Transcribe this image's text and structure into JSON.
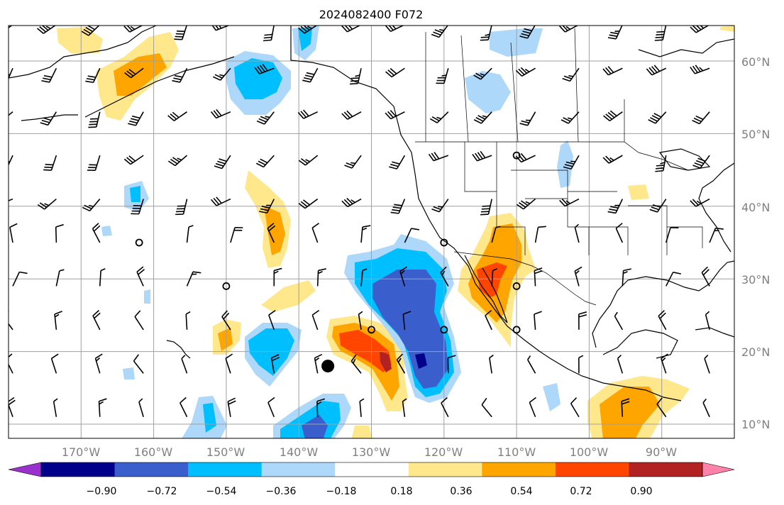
{
  "title": "2024082400 F072",
  "map": {
    "lon_range": [
      -180,
      -80
    ],
    "lat_range": [
      8,
      65
    ],
    "lat_labels": [
      "10°N",
      "20°N",
      "30°N",
      "40°N",
      "50°N",
      "60°N"
    ],
    "lon_labels": [
      "170°W",
      "160°W",
      "150°W",
      "140°W",
      "130°W",
      "120°W",
      "110°W",
      "100°W",
      "90°W"
    ],
    "gridlines": true,
    "gridline_color": "#a0a0a0"
  },
  "colorbar": {
    "orientation": "horizontal",
    "extend": "both",
    "tick_labels": [
      "−0.90",
      "−0.72",
      "−0.54",
      "−0.36",
      "−0.18",
      "0.18",
      "0.36",
      "0.54",
      "0.72",
      "0.90"
    ],
    "colors": [
      "#9932cc",
      "#00008b",
      "#3a5fcd",
      "#00bfff",
      "#add8fa",
      "#ffffff",
      "#ffe78c",
      "#ffa500",
      "#ff4500",
      "#b22222",
      "#ff82ab"
    ]
  },
  "chart_data": {
    "type": "heatmap",
    "title": "2024082400 F072",
    "x_axis": "longitude",
    "y_axis": "latitude",
    "xlim": [
      -180,
      -80
    ],
    "ylim": [
      8,
      65
    ],
    "levels": [
      -0.9,
      -0.72,
      -0.54,
      -0.36,
      -0.18,
      0.18,
      0.36,
      0.54,
      0.72,
      0.9
    ],
    "anomaly_regions": [
      {
        "sign": "positive",
        "peak": 0.72,
        "lon": -114,
        "lat": 30
      },
      {
        "sign": "positive",
        "peak": 0.72,
        "lon": -129,
        "lat": 20
      },
      {
        "sign": "positive",
        "peak": 0.54,
        "lon": -161,
        "lat": 57
      },
      {
        "sign": "positive",
        "peak": 0.36,
        "lon": -143,
        "lat": 38
      },
      {
        "sign": "positive",
        "peak": 0.54,
        "lon": -94,
        "lat": 11
      },
      {
        "sign": "negative",
        "peak": -0.9,
        "lon": -120,
        "lat": 19
      },
      {
        "sign": "negative",
        "peak": -0.72,
        "lon": -139,
        "lat": 11
      },
      {
        "sign": "negative",
        "peak": -0.54,
        "lon": -144,
        "lat": 58
      },
      {
        "sign": "negative",
        "peak": -0.54,
        "lon": -140,
        "lat": 21
      },
      {
        "sign": "negative",
        "peak": -0.36,
        "lon": -101,
        "lat": 46
      }
    ],
    "circle_markers": [
      {
        "lon": -162,
        "lat": 35
      },
      {
        "lon": -150,
        "lat": 29
      },
      {
        "lon": -120,
        "lat": 35
      },
      {
        "lon": -130,
        "lat": 23
      },
      {
        "lon": -120,
        "lat": 23
      },
      {
        "lon": -110,
        "lat": 23
      },
      {
        "lon": -110,
        "lat": 29
      },
      {
        "lon": -110,
        "lat": 47
      }
    ],
    "filled_marker": {
      "lon": -136,
      "lat": 18
    }
  }
}
